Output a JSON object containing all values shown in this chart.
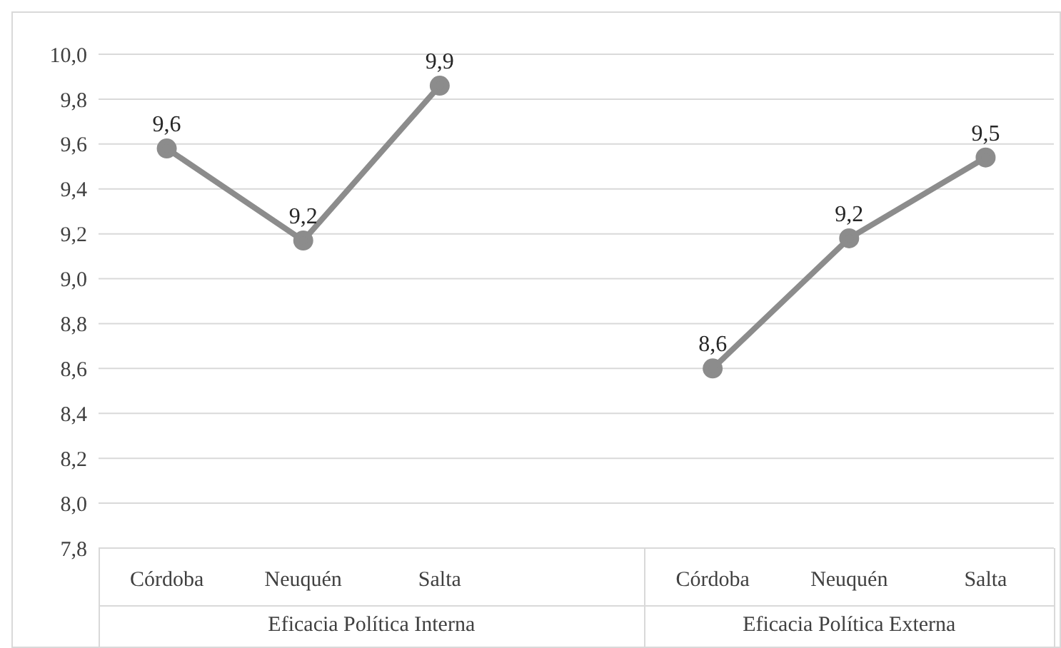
{
  "chart_data": {
    "type": "line",
    "categories": [
      "Córdoba",
      "Neuquén",
      "Salta",
      null,
      "Córdoba",
      "Neuquén",
      "Salta"
    ],
    "series": [
      {
        "color": "#8c8c8c",
        "values": [
          9.58,
          9.17,
          9.86,
          null,
          8.6,
          9.18,
          9.54
        ],
        "value_labels": [
          "9,6",
          "9,2",
          "9,9",
          null,
          "8,6",
          "9,2",
          "9,5"
        ]
      }
    ],
    "ylim": [
      7.8,
      10.0
    ],
    "yticks": [
      {
        "value": 7.8,
        "label": "7,8"
      },
      {
        "value": 8.0,
        "label": "8,0"
      },
      {
        "value": 8.2,
        "label": "8,2"
      },
      {
        "value": 8.4,
        "label": "8,4"
      },
      {
        "value": 8.6,
        "label": "8,6"
      },
      {
        "value": 8.8,
        "label": "8,8"
      },
      {
        "value": 9.0,
        "label": "9,0"
      },
      {
        "value": 9.2,
        "label": "9,2"
      },
      {
        "value": 9.4,
        "label": "9,4"
      },
      {
        "value": 9.6,
        "label": "9,6"
      },
      {
        "value": 9.8,
        "label": "9,8"
      },
      {
        "value": 10.0,
        "label": "10,0"
      }
    ],
    "annotations": [
      "Eficacia Política Interna",
      "Eficacia Política Externa"
    ],
    "grid": "y",
    "legend": false,
    "marker": "circle",
    "line_style": "solid"
  }
}
